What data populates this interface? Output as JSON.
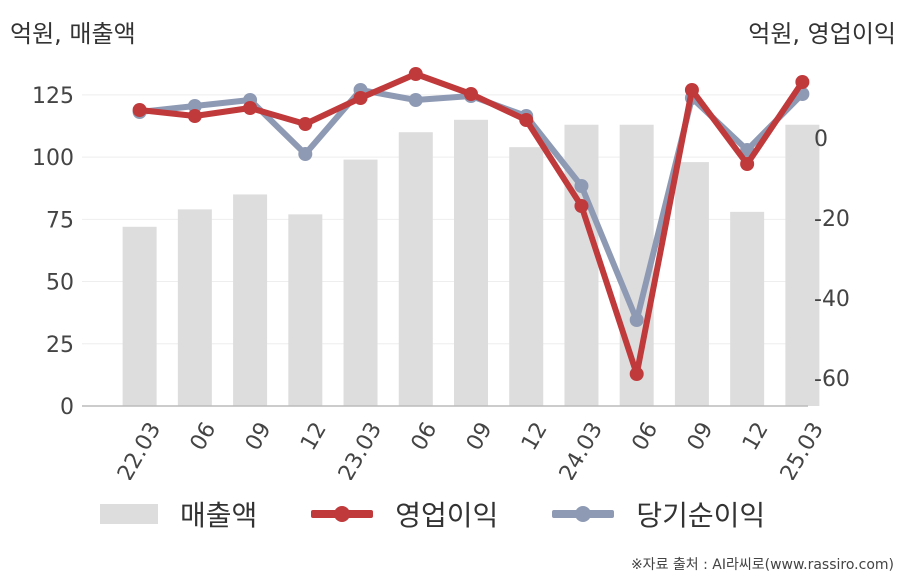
{
  "labels": {
    "left_unit": "억원, 매출액",
    "right_unit": "억원, 영업이익",
    "source": "※자료 출처 : AI라씨로(www.rassiro.com)"
  },
  "colors": {
    "bar": "#dddddd",
    "operating": "#c0393b",
    "net": "#8e9ab4"
  },
  "chart_data": {
    "type": "bar+line",
    "categories": [
      "22.03",
      "06",
      "09",
      "12",
      "23.03",
      "06",
      "09",
      "12",
      "24.03",
      "06",
      "09",
      "12",
      "25.03"
    ],
    "y_left": {
      "ticks": [
        0,
        25,
        50,
        75,
        100,
        125
      ],
      "lim": [
        0,
        135
      ]
    },
    "y_right": {
      "ticks": [
        0,
        -20,
        -40,
        -60
      ],
      "lim": [
        -67,
        17
      ]
    },
    "series": [
      {
        "name": "매출액",
        "axis": "left",
        "kind": "bar",
        "values": [
          72,
          79,
          85,
          77,
          99,
          110,
          115,
          104,
          113,
          113,
          98,
          78,
          113
        ]
      },
      {
        "name": "영업이익",
        "axis": "right",
        "kind": "line",
        "values": [
          7,
          5.5,
          7.5,
          3.5,
          10,
          16,
          11,
          4.5,
          -17,
          -59,
          12,
          -6.5,
          14
        ]
      },
      {
        "name": "당기순이익",
        "axis": "right",
        "kind": "line",
        "values": [
          6.5,
          8,
          9.5,
          -4,
          12,
          9.5,
          10.5,
          5.5,
          -12,
          -45.5,
          10,
          -3,
          11
        ]
      }
    ],
    "legend": "bottom"
  }
}
